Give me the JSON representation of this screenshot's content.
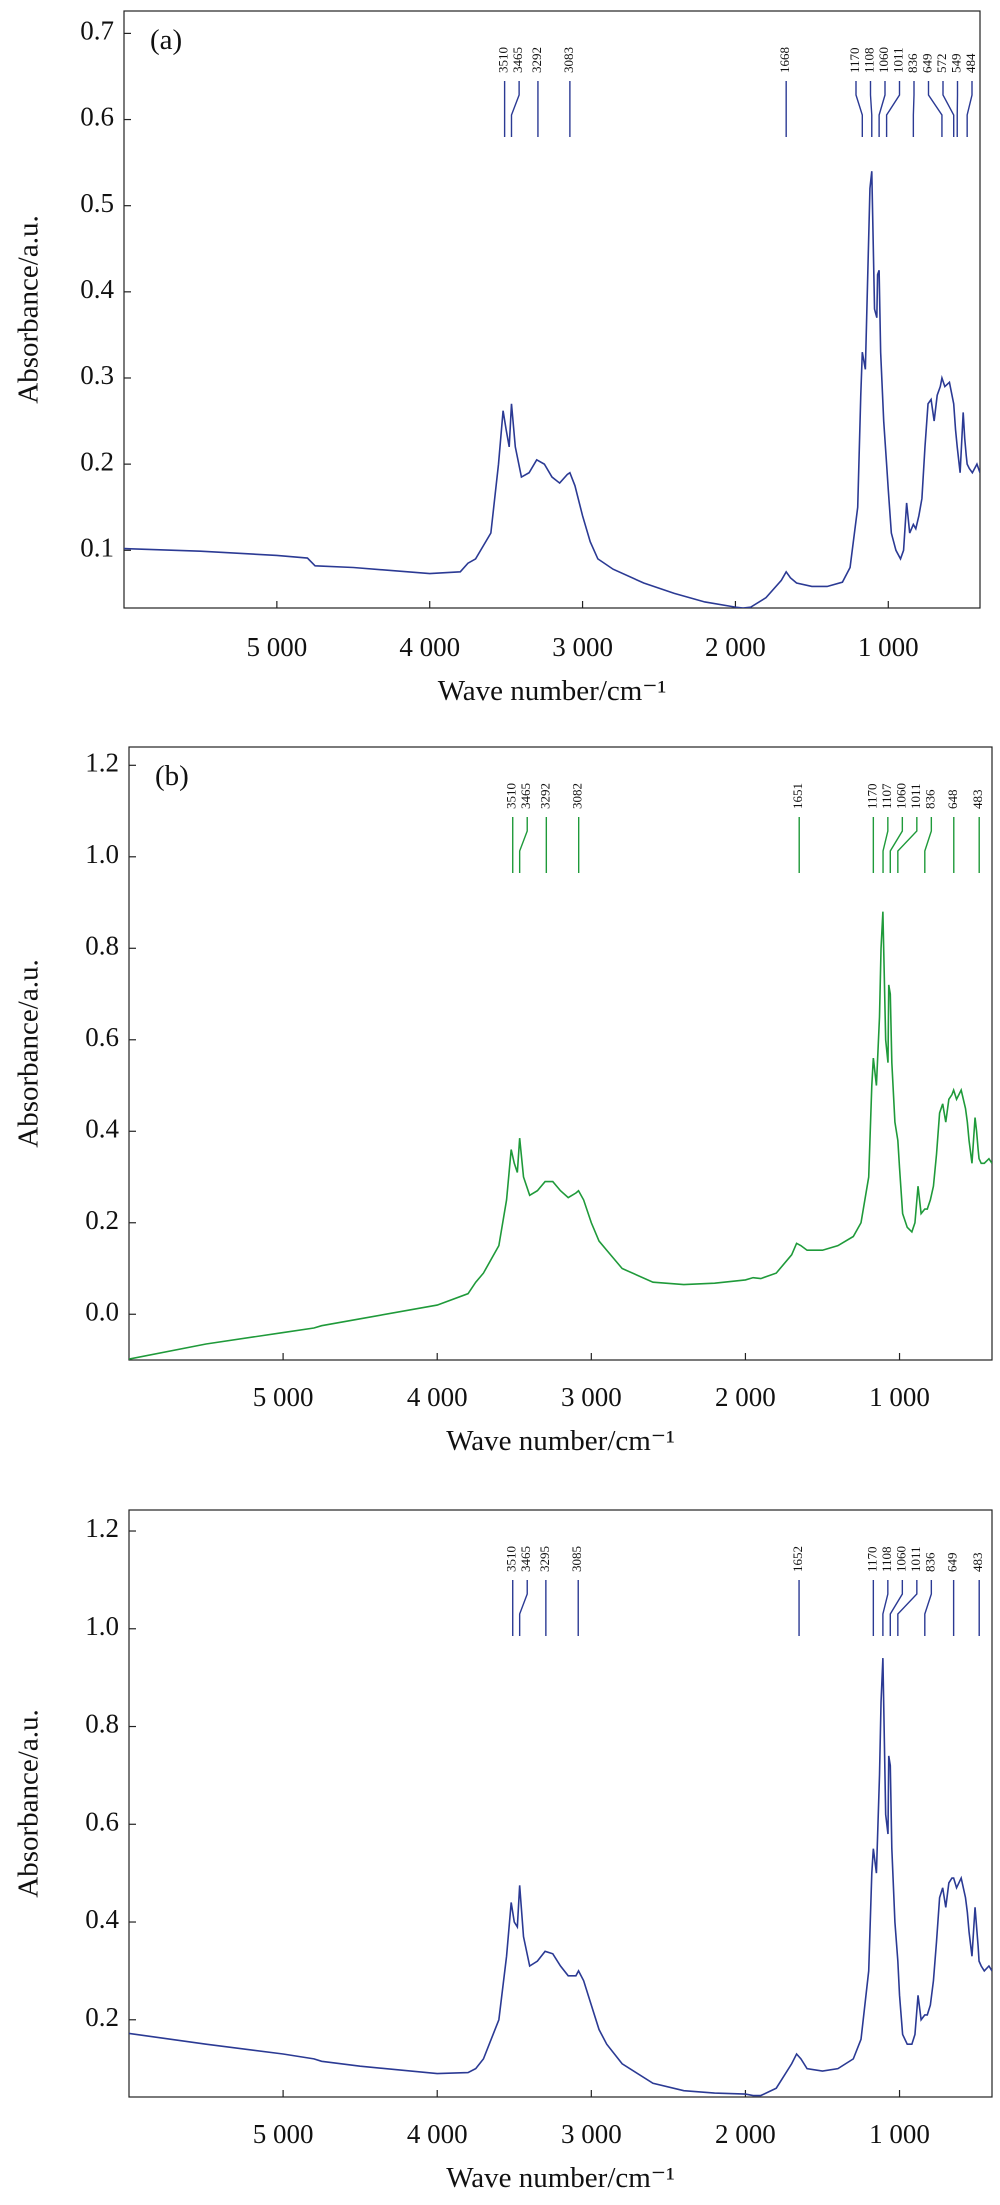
{
  "chart_data": [
    {
      "type": "line",
      "panel_label": "(a)",
      "xlabel": "Wave number/cm⁻¹",
      "ylabel": "Absorbance/a.u.",
      "color": "#2b3a94",
      "peak_color": "#2b3a94",
      "xlim": [
        6000,
        400
      ],
      "ylim": [
        0.033,
        0.726
      ],
      "xticks": [
        {
          "value": 5000,
          "label": "5 000"
        },
        {
          "value": 4000,
          "label": "4 000"
        },
        {
          "value": 3000,
          "label": "3 000"
        },
        {
          "value": 2000,
          "label": "2 000"
        },
        {
          "value": 1000,
          "label": "1 000"
        }
      ],
      "yticks": [
        0.1,
        0.2,
        0.3,
        0.4,
        0.5,
        0.6,
        0.7
      ],
      "peaks": [
        3510,
        3465,
        3292,
        3083,
        1668,
        1170,
        1108,
        1060,
        1011,
        836,
        649,
        572,
        549,
        484
      ],
      "x": [
        6000,
        5500,
        5000,
        4800,
        4750,
        4500,
        4000,
        3800,
        3750,
        3700,
        3600,
        3550,
        3520,
        3500,
        3480,
        3465,
        3440,
        3400,
        3350,
        3300,
        3250,
        3200,
        3150,
        3100,
        3083,
        3050,
        3000,
        2950,
        2900,
        2800,
        2600,
        2400,
        2200,
        2000,
        1950,
        1900,
        1800,
        1700,
        1668,
        1640,
        1600,
        1500,
        1400,
        1300,
        1250,
        1200,
        1180,
        1170,
        1150,
        1130,
        1120,
        1108,
        1090,
        1075,
        1070,
        1060,
        1050,
        1030,
        1011,
        1000,
        980,
        950,
        920,
        900,
        880,
        860,
        836,
        820,
        800,
        780,
        760,
        740,
        720,
        700,
        680,
        660,
        649,
        630,
        600,
        572,
        560,
        549,
        530,
        510,
        500,
        490,
        484,
        470,
        450,
        420,
        400
      ],
      "values": [
        0.102,
        0.099,
        0.094,
        0.091,
        0.082,
        0.08,
        0.073,
        0.075,
        0.085,
        0.09,
        0.12,
        0.2,
        0.262,
        0.24,
        0.22,
        0.27,
        0.22,
        0.185,
        0.19,
        0.205,
        0.2,
        0.185,
        0.178,
        0.188,
        0.19,
        0.175,
        0.14,
        0.11,
        0.09,
        0.078,
        0.062,
        0.05,
        0.04,
        0.034,
        0.033,
        0.034,
        0.045,
        0.065,
        0.075,
        0.068,
        0.062,
        0.058,
        0.058,
        0.063,
        0.08,
        0.15,
        0.28,
        0.33,
        0.31,
        0.45,
        0.52,
        0.54,
        0.38,
        0.37,
        0.42,
        0.425,
        0.33,
        0.25,
        0.2,
        0.17,
        0.12,
        0.1,
        0.09,
        0.1,
        0.155,
        0.12,
        0.13,
        0.125,
        0.14,
        0.16,
        0.22,
        0.27,
        0.275,
        0.25,
        0.28,
        0.29,
        0.3,
        0.29,
        0.295,
        0.27,
        0.24,
        0.22,
        0.19,
        0.26,
        0.23,
        0.21,
        0.2,
        0.195,
        0.19,
        0.2,
        0.19
      ]
    },
    {
      "type": "line",
      "panel_label": "(b)",
      "xlabel": "Wave number/cm⁻¹",
      "ylabel": "Absorbance/a.u.",
      "color": "#1f9a3a",
      "peak_color": "#1f9a3a",
      "xlim": [
        6000,
        400
      ],
      "ylim": [
        -0.1,
        1.24
      ],
      "xticks": [
        {
          "value": 5000,
          "label": "5 000"
        },
        {
          "value": 4000,
          "label": "4 000"
        },
        {
          "value": 3000,
          "label": "3 000"
        },
        {
          "value": 2000,
          "label": "2 000"
        },
        {
          "value": 1000,
          "label": "1 000"
        }
      ],
      "yticks": [
        {
          "value": 0,
          "label": "0.0"
        },
        0.2,
        0.4,
        0.6,
        0.8,
        {
          "value": 1,
          "label": "1.0"
        },
        1.2
      ],
      "peaks": [
        3510,
        3465,
        3292,
        3082,
        1651,
        1170,
        1107,
        1060,
        1011,
        836,
        648,
        483
      ],
      "x": [
        6000,
        5500,
        5000,
        4800,
        4750,
        4500,
        4000,
        3800,
        3750,
        3700,
        3600,
        3550,
        3520,
        3500,
        3480,
        3465,
        3440,
        3400,
        3350,
        3300,
        3250,
        3200,
        3150,
        3100,
        3083,
        3050,
        3000,
        2950,
        2900,
        2800,
        2600,
        2400,
        2200,
        2000,
        1950,
        1900,
        1800,
        1700,
        1668,
        1640,
        1600,
        1500,
        1400,
        1300,
        1250,
        1200,
        1180,
        1170,
        1150,
        1130,
        1120,
        1108,
        1090,
        1075,
        1070,
        1060,
        1050,
        1030,
        1011,
        1000,
        980,
        950,
        920,
        900,
        880,
        860,
        836,
        820,
        800,
        780,
        760,
        740,
        720,
        700,
        680,
        660,
        649,
        630,
        600,
        572,
        560,
        549,
        530,
        510,
        500,
        490,
        484,
        470,
        450,
        420,
        400
      ],
      "values": [
        -0.098,
        -0.065,
        -0.04,
        -0.03,
        -0.025,
        -0.01,
        0.02,
        0.045,
        0.07,
        0.09,
        0.15,
        0.25,
        0.36,
        0.33,
        0.31,
        0.385,
        0.3,
        0.26,
        0.27,
        0.29,
        0.29,
        0.27,
        0.255,
        0.265,
        0.27,
        0.25,
        0.2,
        0.16,
        0.14,
        0.1,
        0.07,
        0.065,
        0.068,
        0.075,
        0.08,
        0.078,
        0.09,
        0.13,
        0.155,
        0.15,
        0.14,
        0.14,
        0.15,
        0.17,
        0.2,
        0.3,
        0.5,
        0.56,
        0.5,
        0.65,
        0.8,
        0.88,
        0.6,
        0.55,
        0.72,
        0.7,
        0.55,
        0.42,
        0.38,
        0.32,
        0.22,
        0.19,
        0.18,
        0.2,
        0.28,
        0.22,
        0.23,
        0.23,
        0.25,
        0.28,
        0.35,
        0.44,
        0.46,
        0.42,
        0.47,
        0.48,
        0.49,
        0.47,
        0.49,
        0.45,
        0.42,
        0.38,
        0.33,
        0.43,
        0.4,
        0.36,
        0.34,
        0.33,
        0.33,
        0.34,
        0.33
      ]
    },
    {
      "type": "line",
      "xlabel": "Wave number/cm⁻¹",
      "ylabel": "Absorbance/a.u.",
      "color": "#2b3a94",
      "peak_color": "#2b3a94",
      "xlim": [
        6000,
        400
      ],
      "ylim": [
        0.042,
        1.243
      ],
      "xticks": [
        {
          "value": 5000,
          "label": "5 000"
        },
        {
          "value": 4000,
          "label": "4 000"
        },
        {
          "value": 3000,
          "label": "3 000"
        },
        {
          "value": 2000,
          "label": "2 000"
        },
        {
          "value": 1000,
          "label": "1 000"
        }
      ],
      "yticks": [
        0.2,
        0.4,
        0.6,
        0.8,
        {
          "value": 1,
          "label": "1.0"
        },
        1.2
      ],
      "peaks": [
        3510,
        3465,
        3295,
        3085,
        1652,
        1170,
        1108,
        1060,
        1011,
        836,
        649,
        483
      ],
      "x": [
        6000,
        5500,
        5000,
        4800,
        4750,
        4500,
        4000,
        3800,
        3750,
        3700,
        3600,
        3550,
        3520,
        3500,
        3480,
        3465,
        3440,
        3400,
        3350,
        3300,
        3250,
        3200,
        3150,
        3100,
        3083,
        3050,
        3000,
        2950,
        2900,
        2800,
        2600,
        2400,
        2200,
        2000,
        1950,
        1900,
        1800,
        1700,
        1668,
        1640,
        1600,
        1500,
        1400,
        1300,
        1250,
        1200,
        1180,
        1170,
        1150,
        1130,
        1120,
        1108,
        1090,
        1075,
        1070,
        1060,
        1050,
        1030,
        1011,
        1000,
        980,
        950,
        920,
        900,
        880,
        860,
        836,
        820,
        800,
        780,
        760,
        740,
        720,
        700,
        680,
        660,
        649,
        630,
        600,
        572,
        560,
        549,
        530,
        510,
        500,
        490,
        484,
        470,
        450,
        420,
        400
      ],
      "values": [
        0.172,
        0.15,
        0.13,
        0.12,
        0.115,
        0.105,
        0.09,
        0.092,
        0.1,
        0.12,
        0.2,
        0.33,
        0.44,
        0.4,
        0.39,
        0.475,
        0.37,
        0.31,
        0.32,
        0.34,
        0.335,
        0.31,
        0.29,
        0.29,
        0.3,
        0.28,
        0.23,
        0.18,
        0.15,
        0.11,
        0.07,
        0.055,
        0.05,
        0.048,
        0.045,
        0.045,
        0.06,
        0.11,
        0.13,
        0.12,
        0.1,
        0.095,
        0.1,
        0.12,
        0.16,
        0.3,
        0.5,
        0.55,
        0.5,
        0.7,
        0.85,
        0.94,
        0.62,
        0.58,
        0.74,
        0.72,
        0.55,
        0.4,
        0.32,
        0.25,
        0.17,
        0.15,
        0.15,
        0.17,
        0.25,
        0.2,
        0.21,
        0.21,
        0.23,
        0.28,
        0.36,
        0.45,
        0.47,
        0.43,
        0.48,
        0.49,
        0.49,
        0.47,
        0.49,
        0.45,
        0.42,
        0.38,
        0.33,
        0.43,
        0.39,
        0.35,
        0.32,
        0.31,
        0.3,
        0.31,
        0.3
      ]
    }
  ]
}
